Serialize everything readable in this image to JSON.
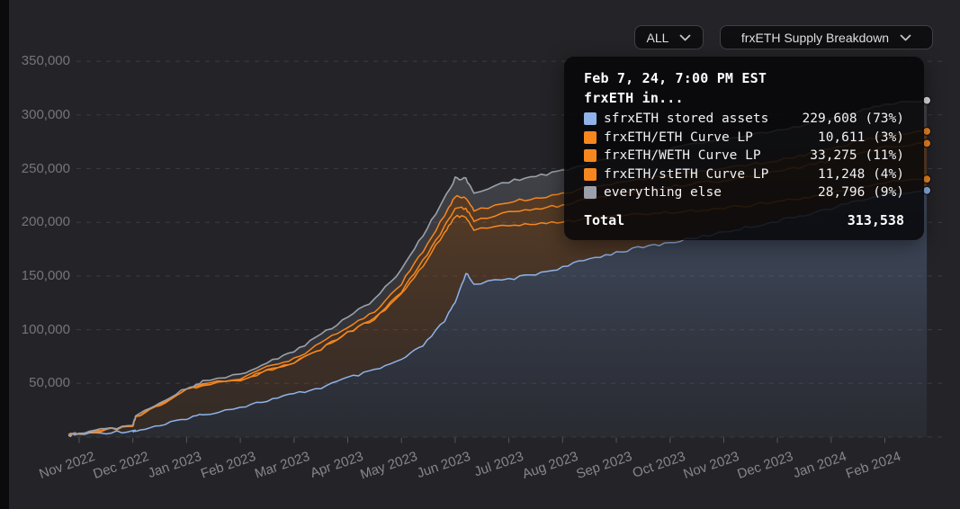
{
  "controls": {
    "range_dropdown": {
      "label": "ALL"
    },
    "metric_dropdown": {
      "label": "frxETH Supply Breakdown"
    }
  },
  "tooltip": {
    "date": "Feb 7, 24, 7:00 PM EST",
    "subtitle": "frxETH in...",
    "rows": [
      {
        "label": "sfrxETH stored assets",
        "value": "229,608 (73%)",
        "color": "#8fb3e8"
      },
      {
        "label": "frxETH/ETH Curve LP",
        "value": "10,611 (3%)",
        "color": "#f6871f"
      },
      {
        "label": "frxETH/WETH Curve LP",
        "value": "33,275 (11%)",
        "color": "#f6871f"
      },
      {
        "label": "frxETH/stETH Curve LP",
        "value": "11,248 (4%)",
        "color": "#f6871f"
      },
      {
        "label": "everything else",
        "value": "28,796 (9%)",
        "color": "#9ba1ab"
      }
    ],
    "total_label": "Total",
    "total_value": "313,538"
  },
  "chart_data": {
    "type": "area",
    "stacked": true,
    "title": "frxETH Supply Breakdown",
    "grid": "dashed",
    "legend_position": "tooltip",
    "ylim": [
      0,
      365000
    ],
    "y_ticks": [
      50000,
      100000,
      150000,
      200000,
      250000,
      300000,
      350000
    ],
    "x_tick_labels": [
      "Nov 2022",
      "Dec 2022",
      "Jan 2023",
      "Feb 2023",
      "Mar 2023",
      "Apr 2023",
      "May 2023",
      "Jun 2023",
      "Jul 2023",
      "Aug 2023",
      "Sep 2023",
      "Oct 2023",
      "Nov 2023",
      "Dec 2023",
      "Jan 2024",
      "Feb 2024"
    ],
    "x_unit": "months after Nov 1 2022",
    "x": [
      -0.2,
      0,
      0.5,
      1.0,
      1.05,
      1.5,
      2.0,
      2.3,
      3.0,
      3.5,
      4.0,
      4.5,
      5.0,
      5.5,
      6.0,
      6.4,
      6.8,
      7.0,
      7.2,
      7.35,
      8.0,
      8.5,
      9.0,
      9.5,
      10.0,
      10.5,
      11.0,
      11.5,
      12.0,
      12.5,
      13.0,
      13.5,
      14.0,
      14.5,
      15.0,
      15.78
    ],
    "series": [
      {
        "name": "sfrxETH stored assets",
        "color": "#8fb3e8",
        "fill": "blue",
        "values": [
          1500,
          2500,
          4200,
          5900,
          6000,
          10000,
          17600,
          21000,
          28000,
          34000,
          40000,
          46000,
          55000,
          62000,
          72000,
          85000,
          108000,
          125000,
          153000,
          143000,
          147000,
          152000,
          158000,
          166000,
          172000,
          177000,
          181000,
          186000,
          191000,
          196000,
          201000,
          207000,
          213000,
          220000,
          226000,
          229608
        ]
      },
      {
        "name": "frxETH/ETH Curve LP",
        "color": "#f6871f",
        "fill": "orange",
        "values": [
          400,
          600,
          2500,
          4000,
          12000,
          20000,
          26000,
          28000,
          24000,
          28000,
          29000,
          36000,
          42000,
          48000,
          61000,
          75000,
          82000,
          81000,
          52000,
          50000,
          50000,
          46000,
          42000,
          38000,
          34000,
          31000,
          28000,
          25000,
          22000,
          20000,
          18000,
          16000,
          14000,
          12000,
          11000,
          10611
        ]
      },
      {
        "name": "frxETH/WETH Curve LP",
        "color": "#f6871f",
        "fill": "orange",
        "values": [
          0,
          0,
          0,
          0,
          0,
          0,
          0,
          0,
          0,
          0,
          0,
          0,
          0,
          0,
          2000,
          4000,
          6000,
          8000,
          8000,
          8000,
          12000,
          14000,
          16000,
          18000,
          20000,
          22000,
          24000,
          25000,
          26000,
          27000,
          28000,
          29000,
          31000,
          32000,
          33000,
          33275
        ]
      },
      {
        "name": "frxETH/stETH Curve LP",
        "color": "#f6871f",
        "fill": "orange",
        "values": [
          0,
          0,
          0,
          0,
          0,
          0,
          0,
          0,
          2000,
          3000,
          4000,
          5000,
          6000,
          7000,
          8000,
          9000,
          10000,
          10000,
          10000,
          10000,
          10000,
          10500,
          11000,
          11000,
          11000,
          11000,
          11000,
          11000,
          11000,
          11000,
          11000,
          11000,
          11000,
          11000,
          11200,
          11248
        ]
      },
      {
        "name": "everything else",
        "color": "#9ba1ab",
        "fill": "gray",
        "values": [
          300,
          400,
          600,
          800,
          1000,
          1500,
          2000,
          2500,
          4000,
          5000,
          6500,
          8000,
          9500,
          11000,
          13000,
          15000,
          16000,
          17000,
          17000,
          16000,
          19000,
          20000,
          21000,
          22000,
          23000,
          24000,
          25000,
          26000,
          26500,
          27000,
          27500,
          28000,
          28000,
          28300,
          28600,
          28796
        ]
      }
    ],
    "hover_point": {
      "date": "Feb 7, 24, 7:00 PM EST",
      "values": {
        "sfrxETH stored assets": 229608,
        "frxETH/ETH Curve LP": 10611,
        "frxETH/WETH Curve LP": 33275,
        "frxETH/stETH Curve LP": 11248,
        "everything else": 28796
      },
      "total": 313538
    }
  },
  "colors": {
    "background": "#242428",
    "panel_edge": "#0b0b0d",
    "grid": "#3a3a40",
    "axis_text": "#86868c",
    "tooltip_bg": "rgba(7,7,9,0.87)",
    "series_blue": "#8fb3e8",
    "series_orange": "#f6871f",
    "series_gray": "#9ba1ab"
  }
}
